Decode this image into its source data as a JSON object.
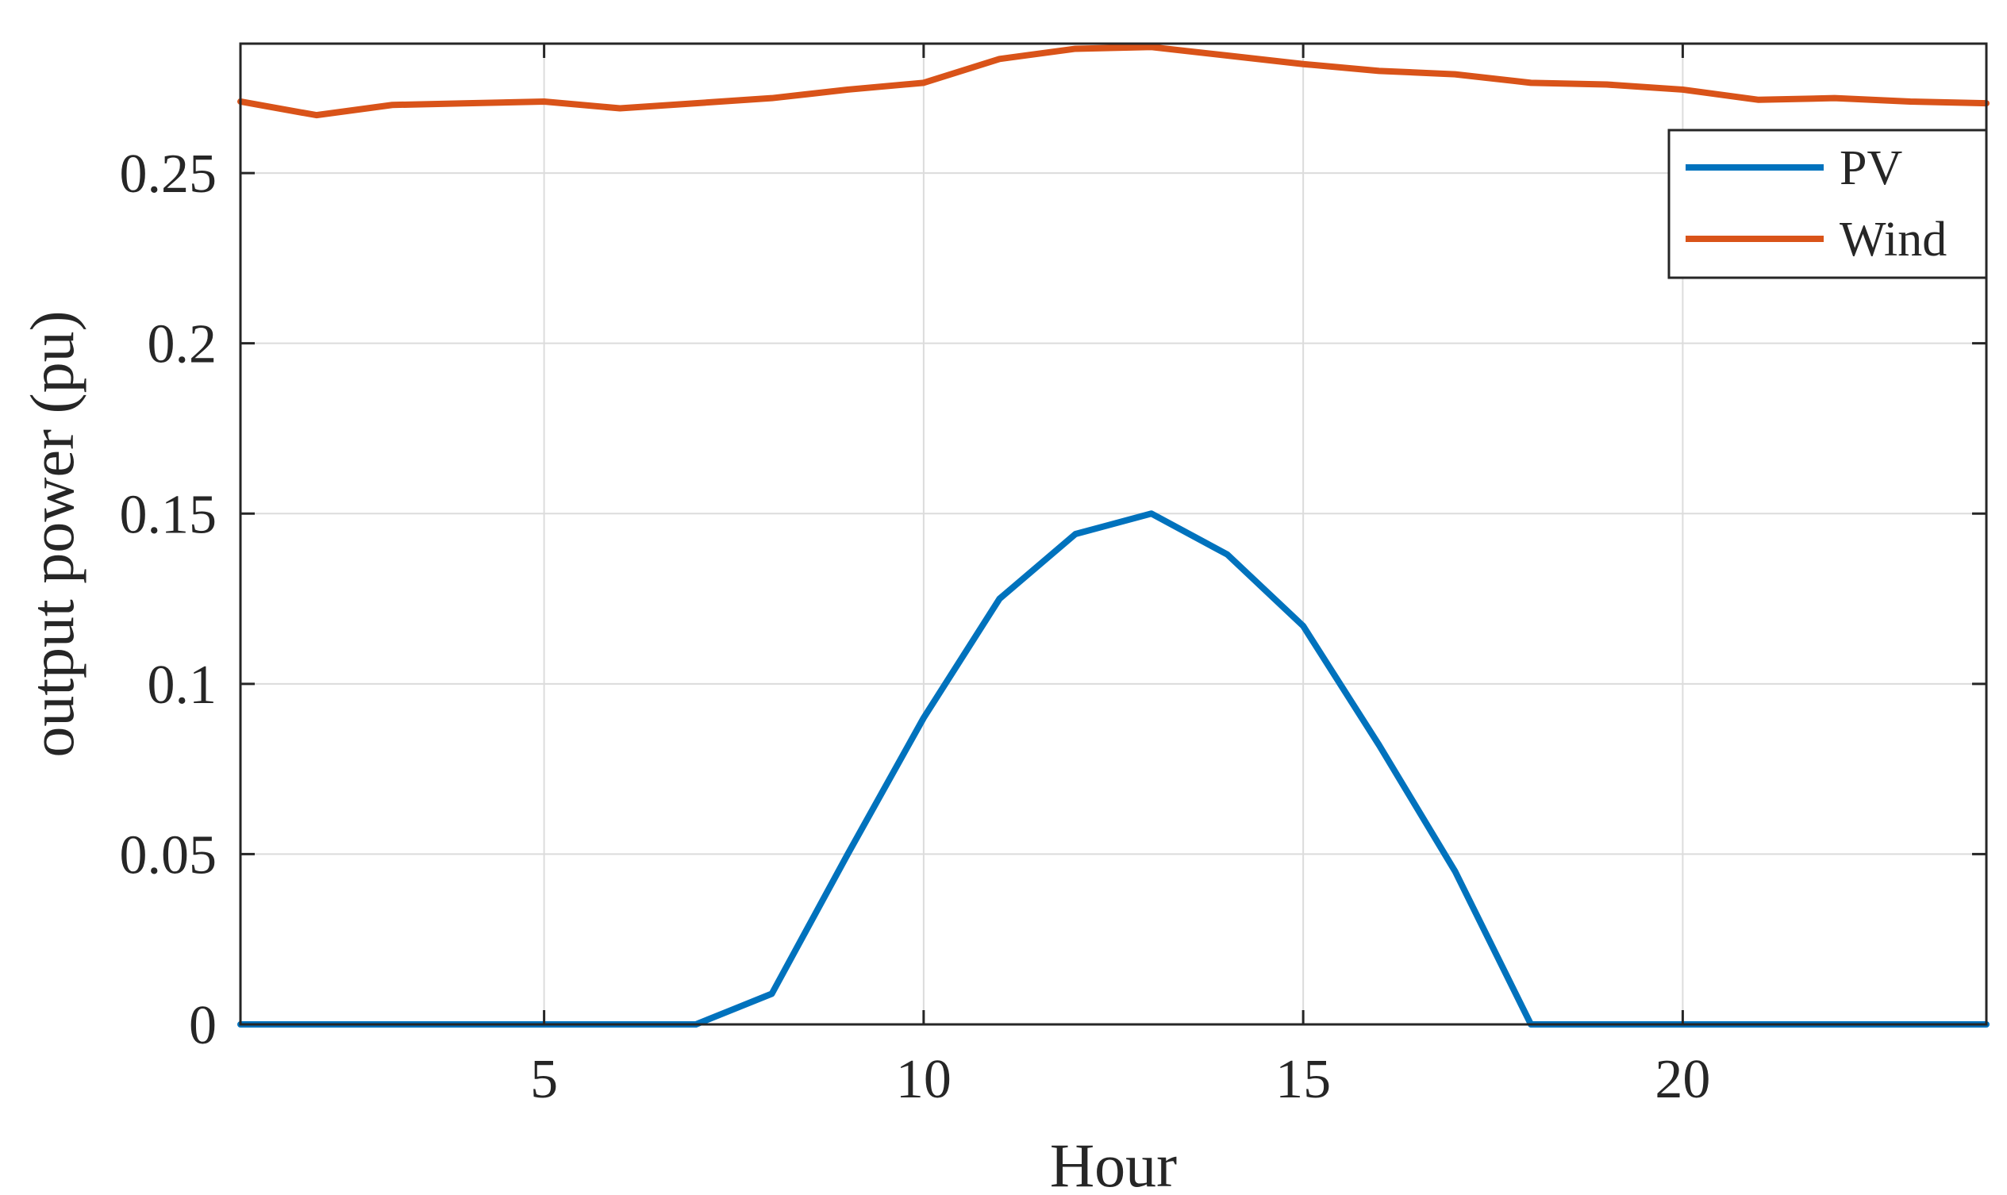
{
  "chart_data": {
    "type": "line",
    "title": "",
    "xlabel": "Hour",
    "ylabel": "output power (pu)",
    "xlim": [
      1,
      24
    ],
    "ylim": [
      0,
      0.288
    ],
    "xticks": [
      5,
      10,
      15,
      20
    ],
    "yticks": [
      0,
      0.05,
      0.1,
      0.15,
      0.2,
      0.25
    ],
    "ytick_labels": [
      "0",
      "0.05",
      "0.1",
      "0.15",
      "0.2",
      "0.25"
    ],
    "xtick_labels": [
      "5",
      "10",
      "15",
      "20"
    ],
    "grid": true,
    "legend_position": "top-right",
    "x": [
      1,
      2,
      3,
      4,
      5,
      6,
      7,
      8,
      9,
      10,
      11,
      12,
      13,
      14,
      15,
      16,
      17,
      18,
      19,
      20,
      21,
      22,
      23,
      24
    ],
    "series": [
      {
        "name": "PV",
        "color": "#0072BD",
        "values": [
          0,
          0,
          0,
          0,
          0,
          0,
          0,
          0.009,
          0.05,
          0.09,
          0.125,
          0.144,
          0.15,
          0.138,
          0.117,
          0.082,
          0.045,
          0,
          0,
          0,
          0,
          0,
          0,
          0
        ]
      },
      {
        "name": "Wind",
        "color": "#D95319",
        "values": [
          0.271,
          0.267,
          0.27,
          0.2705,
          0.271,
          0.269,
          0.2705,
          0.272,
          0.2745,
          0.2765,
          0.2835,
          0.2865,
          0.287,
          0.2845,
          0.282,
          0.28,
          0.279,
          0.2765,
          0.276,
          0.2745,
          0.2715,
          0.272,
          0.271,
          0.2705
        ]
      }
    ]
  }
}
